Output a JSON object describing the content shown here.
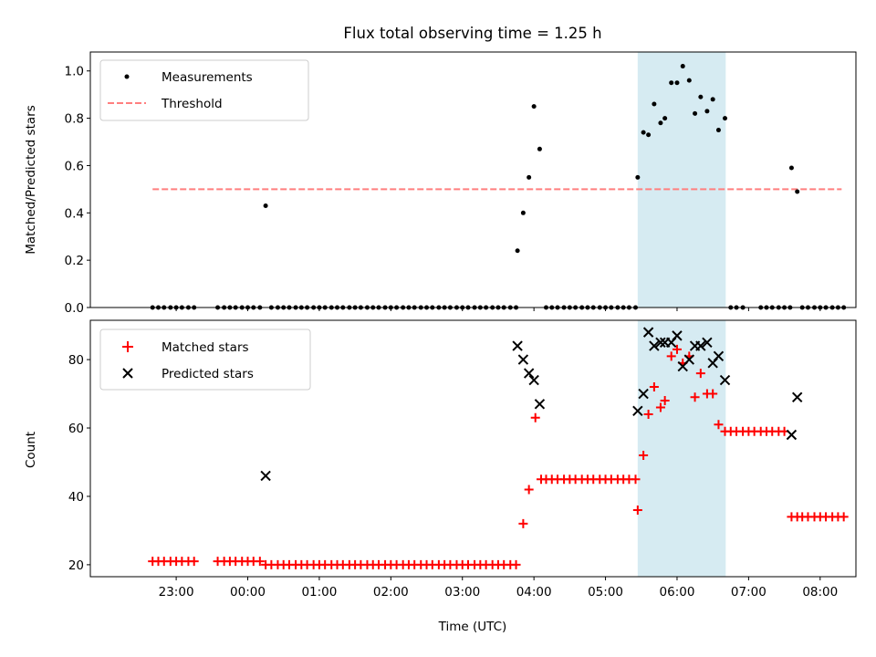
{
  "chart_data": [
    {
      "type": "scatter",
      "title": "Flux total observing time = 1.25 h",
      "ylabel": "Matched/Predicted stars",
      "xlabel": "",
      "ylim": [
        0,
        1.08
      ],
      "yticks": [
        "0.0",
        "0.2",
        "0.4",
        "0.6",
        "0.8",
        "1.0"
      ],
      "ytick_values": [
        0,
        0.2,
        0.4,
        0.6,
        0.8,
        1.0
      ],
      "legend": "top-left",
      "highlight_span": [
        5.45,
        6.68
      ],
      "threshold": {
        "name": "Threshold",
        "value": 0.5,
        "x_range": [
          -1.33,
          8.3
        ]
      },
      "series": [
        {
          "name": "Measurements",
          "points": [
            [
              -1.33,
              0
            ],
            [
              -1.25,
              0
            ],
            [
              -1.17,
              0
            ],
            [
              -1.08,
              0
            ],
            [
              -1.0,
              0
            ],
            [
              -0.92,
              0
            ],
            [
              -0.83,
              0
            ],
            [
              -0.75,
              0
            ],
            [
              -0.42,
              0
            ],
            [
              -0.33,
              0
            ],
            [
              -0.25,
              0
            ],
            [
              -0.17,
              0
            ],
            [
              -0.08,
              0
            ],
            [
              0.0,
              0
            ],
            [
              0.08,
              0
            ],
            [
              0.17,
              0
            ],
            [
              0.25,
              0.43
            ],
            [
              0.33,
              0
            ],
            [
              0.42,
              0
            ],
            [
              0.5,
              0
            ],
            [
              0.58,
              0
            ],
            [
              0.67,
              0
            ],
            [
              0.75,
              0
            ],
            [
              0.83,
              0
            ],
            [
              0.92,
              0
            ],
            [
              1.0,
              0
            ],
            [
              1.08,
              0
            ],
            [
              1.17,
              0
            ],
            [
              1.25,
              0
            ],
            [
              1.33,
              0
            ],
            [
              1.42,
              0
            ],
            [
              1.5,
              0
            ],
            [
              1.58,
              0
            ],
            [
              1.67,
              0
            ],
            [
              1.75,
              0
            ],
            [
              1.83,
              0
            ],
            [
              1.92,
              0
            ],
            [
              2.0,
              0
            ],
            [
              2.08,
              0
            ],
            [
              2.17,
              0
            ],
            [
              2.25,
              0
            ],
            [
              2.33,
              0
            ],
            [
              2.42,
              0
            ],
            [
              2.5,
              0
            ],
            [
              2.58,
              0
            ],
            [
              2.67,
              0
            ],
            [
              2.75,
              0
            ],
            [
              2.83,
              0
            ],
            [
              2.92,
              0
            ],
            [
              3.0,
              0
            ],
            [
              3.08,
              0
            ],
            [
              3.17,
              0
            ],
            [
              3.25,
              0
            ],
            [
              3.33,
              0
            ],
            [
              3.42,
              0
            ],
            [
              3.5,
              0
            ],
            [
              3.58,
              0
            ],
            [
              3.67,
              0
            ],
            [
              3.75,
              0
            ],
            [
              3.77,
              0.24
            ],
            [
              3.85,
              0.4
            ],
            [
              3.93,
              0.55
            ],
            [
              4.0,
              0.85
            ],
            [
              4.08,
              0.67
            ],
            [
              4.17,
              0
            ],
            [
              4.25,
              0
            ],
            [
              4.33,
              0
            ],
            [
              4.42,
              0
            ],
            [
              4.5,
              0
            ],
            [
              4.58,
              0
            ],
            [
              4.67,
              0
            ],
            [
              4.75,
              0
            ],
            [
              4.83,
              0
            ],
            [
              4.92,
              0
            ],
            [
              5.0,
              0
            ],
            [
              5.08,
              0
            ],
            [
              5.17,
              0
            ],
            [
              5.25,
              0
            ],
            [
              5.33,
              0
            ],
            [
              5.42,
              0
            ],
            [
              5.45,
              0.55
            ],
            [
              5.53,
              0.74
            ],
            [
              5.6,
              0.73
            ],
            [
              5.68,
              0.86
            ],
            [
              5.77,
              0.78
            ],
            [
              5.83,
              0.8
            ],
            [
              5.92,
              0.95
            ],
            [
              6.0,
              0.95
            ],
            [
              6.08,
              1.02
            ],
            [
              6.17,
              0.96
            ],
            [
              6.25,
              0.82
            ],
            [
              6.33,
              0.89
            ],
            [
              6.42,
              0.83
            ],
            [
              6.5,
              0.88
            ],
            [
              6.58,
              0.75
            ],
            [
              6.67,
              0.8
            ],
            [
              6.75,
              0
            ],
            [
              6.83,
              0
            ],
            [
              6.92,
              0
            ],
            [
              7.17,
              0
            ],
            [
              7.25,
              0
            ],
            [
              7.33,
              0
            ],
            [
              7.42,
              0
            ],
            [
              7.5,
              0
            ],
            [
              7.58,
              0
            ],
            [
              7.6,
              0.59
            ],
            [
              7.68,
              0.49
            ],
            [
              7.75,
              0
            ],
            [
              7.83,
              0
            ],
            [
              7.92,
              0
            ],
            [
              8.0,
              0
            ],
            [
              8.08,
              0
            ],
            [
              8.17,
              0
            ],
            [
              8.25,
              0
            ],
            [
              8.33,
              0
            ]
          ],
          "color": "#000000"
        }
      ]
    },
    {
      "type": "scatter",
      "title": "",
      "ylabel": "Count",
      "xlabel": "Time (UTC)",
      "ylim": [
        16.5,
        91.5
      ],
      "yticks": [
        "20",
        "40",
        "60",
        "80"
      ],
      "ytick_values": [
        20,
        40,
        60,
        80
      ],
      "xlim": [
        -2.2,
        8.5
      ],
      "xticks": [
        "23:00",
        "00:00",
        "01:00",
        "02:00",
        "03:00",
        "04:00",
        "05:00",
        "06:00",
        "07:00",
        "08:00"
      ],
      "xtick_values": [
        -1,
        0,
        1,
        2,
        3,
        4,
        5,
        6,
        7,
        8
      ],
      "legend": "top-left",
      "highlight_span": [
        5.45,
        6.68
      ],
      "series": [
        {
          "name": "Matched stars",
          "points": [
            [
              -1.33,
              21
            ],
            [
              -1.25,
              21
            ],
            [
              -1.17,
              21
            ],
            [
              -1.08,
              21
            ],
            [
              -1.0,
              21
            ],
            [
              -0.92,
              21
            ],
            [
              -0.83,
              21
            ],
            [
              -0.75,
              21
            ],
            [
              -0.42,
              21
            ],
            [
              -0.33,
              21
            ],
            [
              -0.25,
              21
            ],
            [
              -0.17,
              21
            ],
            [
              -0.08,
              21
            ],
            [
              0.0,
              21
            ],
            [
              0.08,
              21
            ],
            [
              0.17,
              21
            ],
            [
              0.25,
              20
            ],
            [
              0.33,
              20
            ],
            [
              0.42,
              20
            ],
            [
              0.5,
              20
            ],
            [
              0.58,
              20
            ],
            [
              0.67,
              20
            ],
            [
              0.75,
              20
            ],
            [
              0.83,
              20
            ],
            [
              0.92,
              20
            ],
            [
              1.0,
              20
            ],
            [
              1.08,
              20
            ],
            [
              1.17,
              20
            ],
            [
              1.25,
              20
            ],
            [
              1.33,
              20
            ],
            [
              1.42,
              20
            ],
            [
              1.5,
              20
            ],
            [
              1.58,
              20
            ],
            [
              1.67,
              20
            ],
            [
              1.75,
              20
            ],
            [
              1.83,
              20
            ],
            [
              1.92,
              20
            ],
            [
              2.0,
              20
            ],
            [
              2.08,
              20
            ],
            [
              2.17,
              20
            ],
            [
              2.25,
              20
            ],
            [
              2.33,
              20
            ],
            [
              2.42,
              20
            ],
            [
              2.5,
              20
            ],
            [
              2.58,
              20
            ],
            [
              2.67,
              20
            ],
            [
              2.75,
              20
            ],
            [
              2.83,
              20
            ],
            [
              2.92,
              20
            ],
            [
              3.0,
              20
            ],
            [
              3.08,
              20
            ],
            [
              3.17,
              20
            ],
            [
              3.25,
              20
            ],
            [
              3.33,
              20
            ],
            [
              3.42,
              20
            ],
            [
              3.5,
              20
            ],
            [
              3.58,
              20
            ],
            [
              3.67,
              20
            ],
            [
              3.75,
              20
            ],
            [
              3.85,
              32
            ],
            [
              3.93,
              42
            ],
            [
              4.02,
              63
            ],
            [
              4.1,
              45
            ],
            [
              4.17,
              45
            ],
            [
              4.25,
              45
            ],
            [
              4.33,
              45
            ],
            [
              4.42,
              45
            ],
            [
              4.5,
              45
            ],
            [
              4.58,
              45
            ],
            [
              4.67,
              45
            ],
            [
              4.75,
              45
            ],
            [
              4.83,
              45
            ],
            [
              4.92,
              45
            ],
            [
              5.0,
              45
            ],
            [
              5.08,
              45
            ],
            [
              5.17,
              45
            ],
            [
              5.25,
              45
            ],
            [
              5.33,
              45
            ],
            [
              5.42,
              45
            ],
            [
              5.45,
              36
            ],
            [
              5.53,
              52
            ],
            [
              5.6,
              64
            ],
            [
              5.68,
              72
            ],
            [
              5.77,
              66
            ],
            [
              5.83,
              68
            ],
            [
              5.92,
              81
            ],
            [
              6.0,
              83
            ],
            [
              6.08,
              79
            ],
            [
              6.17,
              81
            ],
            [
              6.25,
              69
            ],
            [
              6.33,
              76
            ],
            [
              6.42,
              70
            ],
            [
              6.5,
              70
            ],
            [
              6.58,
              61
            ],
            [
              6.67,
              59
            ],
            [
              6.75,
              59
            ],
            [
              6.83,
              59
            ],
            [
              6.92,
              59
            ],
            [
              7.0,
              59
            ],
            [
              7.08,
              59
            ],
            [
              7.17,
              59
            ],
            [
              7.25,
              59
            ],
            [
              7.33,
              59
            ],
            [
              7.42,
              59
            ],
            [
              7.5,
              59
            ],
            [
              7.6,
              34
            ],
            [
              7.68,
              34
            ],
            [
              7.75,
              34
            ],
            [
              7.83,
              34
            ],
            [
              7.92,
              34
            ],
            [
              8.0,
              34
            ],
            [
              8.08,
              34
            ],
            [
              8.17,
              34
            ],
            [
              8.25,
              34
            ],
            [
              8.33,
              34
            ]
          ],
          "color": "#ff0000"
        },
        {
          "name": "Predicted stars",
          "points": [
            [
              0.25,
              46
            ],
            [
              3.77,
              84
            ],
            [
              3.85,
              80
            ],
            [
              3.93,
              76
            ],
            [
              4.0,
              74
            ],
            [
              4.08,
              67
            ],
            [
              5.45,
              65
            ],
            [
              5.53,
              70
            ],
            [
              5.6,
              88
            ],
            [
              5.68,
              84
            ],
            [
              5.77,
              85
            ],
            [
              5.83,
              85
            ],
            [
              5.92,
              85
            ],
            [
              6.0,
              87
            ],
            [
              6.08,
              78
            ],
            [
              6.17,
              80
            ],
            [
              6.25,
              84
            ],
            [
              6.33,
              84
            ],
            [
              6.42,
              85
            ],
            [
              6.5,
              79
            ],
            [
              6.58,
              81
            ],
            [
              6.67,
              74
            ],
            [
              7.6,
              58
            ],
            [
              7.68,
              69
            ]
          ],
          "color": "#000000"
        }
      ]
    }
  ]
}
